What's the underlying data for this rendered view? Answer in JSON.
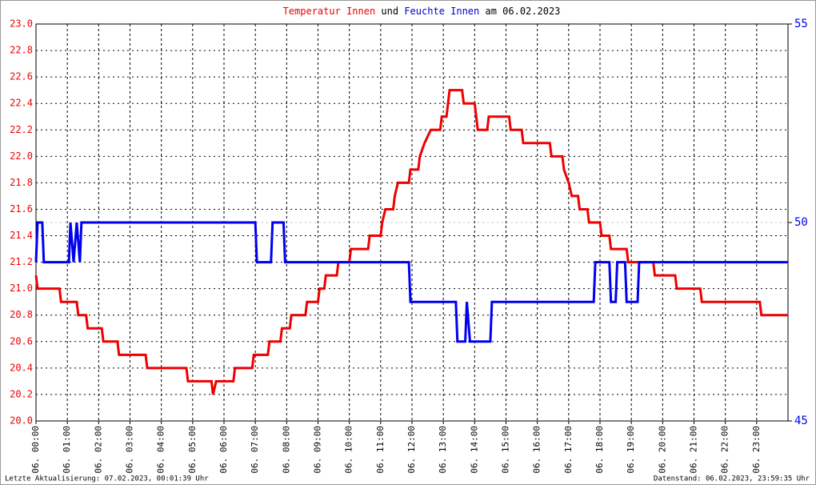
{
  "chart_data": {
    "type": "line",
    "title_parts": [
      {
        "text": "Temperatur Innen",
        "color": "#ee0000"
      },
      {
        "text": "und",
        "color": "#000000"
      },
      {
        "text": "Feuchte Innen",
        "color": "#0000cc"
      },
      {
        "text": "am 06.02.2023",
        "color": "#000000"
      }
    ],
    "footer_left": "Letzte Aktualisierung: 07.02.2023, 00:01:39 Uhr",
    "footer_right": "Datenstand: 06.02.2023, 23:59:35 Uhr",
    "xlim": [
      0,
      24
    ],
    "xticks": [
      {
        "value": 0,
        "label": "06. 00:00"
      },
      {
        "value": 1,
        "label": "06. 01:00"
      },
      {
        "value": 2,
        "label": "06. 02:00"
      },
      {
        "value": 3,
        "label": "06. 03:00"
      },
      {
        "value": 4,
        "label": "06. 04:00"
      },
      {
        "value": 5,
        "label": "06. 05:00"
      },
      {
        "value": 6,
        "label": "06. 06:00"
      },
      {
        "value": 7,
        "label": "06. 07:00"
      },
      {
        "value": 8,
        "label": "06. 08:00"
      },
      {
        "value": 9,
        "label": "06. 09:00"
      },
      {
        "value": 10,
        "label": "06. 10:00"
      },
      {
        "value": 11,
        "label": "06. 11:00"
      },
      {
        "value": 12,
        "label": "06. 12:00"
      },
      {
        "value": 13,
        "label": "06. 13:00"
      },
      {
        "value": 14,
        "label": "06. 14:00"
      },
      {
        "value": 15,
        "label": "06. 15:00"
      },
      {
        "value": 16,
        "label": "06. 16:00"
      },
      {
        "value": 17,
        "label": "06. 17:00"
      },
      {
        "value": 18,
        "label": "06. 18:00"
      },
      {
        "value": 19,
        "label": "06. 19:00"
      },
      {
        "value": 20,
        "label": "06. 20:00"
      },
      {
        "value": 21,
        "label": "06. 21:00"
      },
      {
        "value": 22,
        "label": "06. 22:00"
      },
      {
        "value": 23,
        "label": "06. 23:00"
      }
    ],
    "ylim": [
      20,
      23
    ],
    "yticks": [
      {
        "value": 20,
        "label": "20.0"
      },
      20.2,
      20.4,
      20.6,
      20.8,
      {
        "value": 21,
        "label": "21.0"
      },
      21.2,
      21.4,
      21.6,
      21.8,
      {
        "value": 22,
        "label": "22.0"
      },
      22.2,
      22.4,
      22.6,
      22.8,
      {
        "value": 23,
        "label": "23.0"
      }
    ],
    "y2lim": [
      45,
      55
    ],
    "y2ticks": [
      45,
      50,
      55
    ],
    "grid": true,
    "series": [
      {
        "name": "Temperatur Innen",
        "color": "#ee0000",
        "axis": "y",
        "x": [
          0,
          0.05,
          0.75,
          0.8,
          1.3,
          1.35,
          1.6,
          1.65,
          2.1,
          2.15,
          2.6,
          2.65,
          3.5,
          3.55,
          4.8,
          4.85,
          5.6,
          5.65,
          5.75,
          6.3,
          6.35,
          6.9,
          6.95,
          7.4,
          7.45,
          7.8,
          7.85,
          8.1,
          8.15,
          8.6,
          8.65,
          9.0,
          9.05,
          9.2,
          9.25,
          9.6,
          9.65,
          10.0,
          10.05,
          10.6,
          10.65,
          11.0,
          11.05,
          11.15,
          11.4,
          11.45,
          11.55,
          11.9,
          11.95,
          12.2,
          12.25,
          12.4,
          12.6,
          12.9,
          12.95,
          13.1,
          13.15,
          13.2,
          13.6,
          13.65,
          14.0,
          14.05,
          14.1,
          14.4,
          14.45,
          15.1,
          15.15,
          15.5,
          15.55,
          16.4,
          16.45,
          16.8,
          16.85,
          17.0,
          17.1,
          17.3,
          17.35,
          17.6,
          17.65,
          18.0,
          18.05,
          18.3,
          18.35,
          18.85,
          18.9,
          19.7,
          19.75,
          20.4,
          20.45,
          21.2,
          21.25,
          23.1,
          23.15,
          24
        ],
        "values": [
          21.1,
          21.0,
          21.0,
          20.9,
          20.9,
          20.8,
          20.8,
          20.7,
          20.7,
          20.6,
          20.6,
          20.5,
          20.5,
          20.4,
          20.4,
          20.3,
          20.3,
          20.2,
          20.3,
          20.3,
          20.4,
          20.4,
          20.5,
          20.5,
          20.6,
          20.6,
          20.7,
          20.7,
          20.8,
          20.8,
          20.9,
          20.9,
          21.0,
          21.0,
          21.1,
          21.1,
          21.2,
          21.2,
          21.3,
          21.3,
          21.4,
          21.4,
          21.5,
          21.6,
          21.6,
          21.7,
          21.8,
          21.8,
          21.9,
          21.9,
          22.0,
          22.1,
          22.2,
          22.2,
          22.3,
          22.3,
          22.4,
          22.5,
          22.5,
          22.4,
          22.4,
          22.3,
          22.2,
          22.2,
          22.3,
          22.3,
          22.2,
          22.2,
          22.1,
          22.1,
          22.0,
          22.0,
          21.9,
          21.8,
          21.7,
          21.7,
          21.6,
          21.6,
          21.5,
          21.5,
          21.4,
          21.4,
          21.3,
          21.3,
          21.2,
          21.2,
          21.1,
          21.1,
          21.0,
          21.0,
          20.9,
          20.9,
          20.8,
          20.8
        ]
      },
      {
        "name": "Feuchte Innen",
        "color": "#0000ee",
        "axis": "y2",
        "x": [
          0,
          0.05,
          0.2,
          0.25,
          1.05,
          1.1,
          1.2,
          1.3,
          1.4,
          1.45,
          7.0,
          7.05,
          7.5,
          7.55,
          7.9,
          7.95,
          11.9,
          11.95,
          13.4,
          13.45,
          13.7,
          13.75,
          13.85,
          14.5,
          14.55,
          17.8,
          17.85,
          18.3,
          18.35,
          18.5,
          18.55,
          18.8,
          18.85,
          19.2,
          19.25,
          24
        ],
        "values": [
          49,
          50,
          50,
          49,
          49,
          50,
          49,
          50,
          49,
          50,
          50,
          49,
          49,
          50,
          50,
          49,
          49,
          48,
          48,
          47,
          47,
          48,
          47,
          47,
          48,
          48,
          49,
          49,
          48,
          48,
          49,
          49,
          48,
          48,
          49,
          49
        ]
      }
    ]
  }
}
